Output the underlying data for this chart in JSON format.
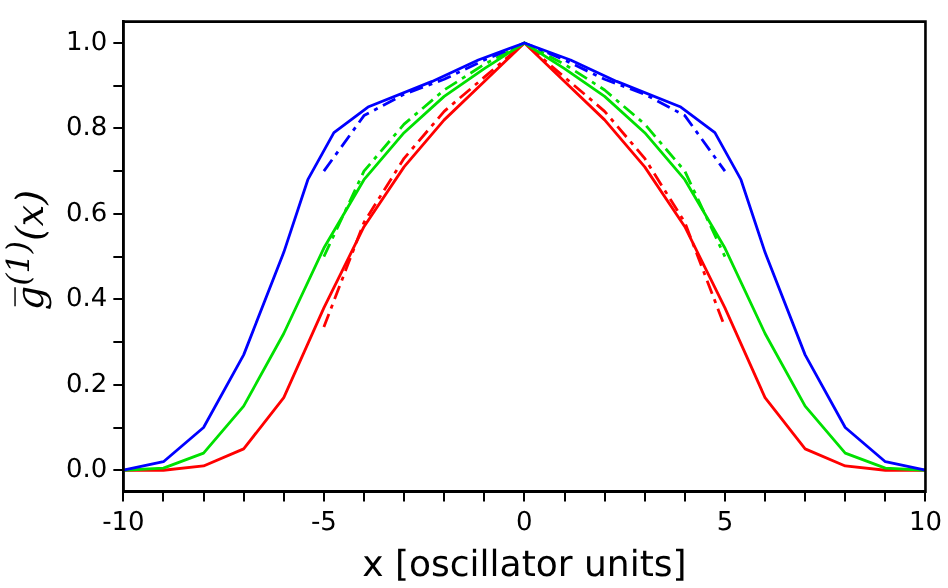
{
  "chart_data": {
    "type": "line",
    "xlabel": "x [oscillator units]",
    "ylabel": "g̅$^{(1)}$(x)",
    "grid": false,
    "legend": false,
    "marker": "none",
    "xlim": [
      -10,
      10
    ],
    "ylim": [
      -0.05,
      1.05
    ],
    "xticks": [
      -10,
      {
        "value": -9,
        "label": null
      },
      {
        "value": -8,
        "label": null
      },
      {
        "value": -7,
        "label": null
      },
      {
        "value": -6,
        "label": null
      },
      -5,
      {
        "value": -4,
        "label": null
      },
      {
        "value": -3,
        "label": null
      },
      {
        "value": -2,
        "label": null
      },
      {
        "value": -1,
        "label": null
      },
      0,
      {
        "value": 1,
        "label": null
      },
      {
        "value": 2,
        "label": null
      },
      {
        "value": 3,
        "label": null
      },
      {
        "value": 4,
        "label": null
      },
      5,
      {
        "value": 6,
        "label": null
      },
      {
        "value": 7,
        "label": null
      },
      {
        "value": 8,
        "label": null
      },
      {
        "value": 9,
        "label": null
      },
      10
    ],
    "yticks": [
      {
        "value": 0,
        "label": "0.0"
      },
      {
        "value": 0.1,
        "label": null
      },
      {
        "value": 0.2,
        "label": "0.2"
      },
      {
        "value": 0.3,
        "label": null
      },
      {
        "value": 0.4,
        "label": "0.4"
      },
      {
        "value": 0.5,
        "label": null
      },
      {
        "value": 0.6,
        "label": "0.6"
      },
      {
        "value": 0.7,
        "label": null
      },
      {
        "value": 0.8,
        "label": "0.8"
      },
      {
        "value": 0.9,
        "label": null
      },
      {
        "value": 1,
        "label": "1.0"
      }
    ],
    "series": [
      {
        "color": "#0000ff",
        "line_style": "solid",
        "x": [
          -10,
          -9,
          -8,
          -7,
          -6,
          -5.4,
          -4.75,
          -3.9,
          -2.3,
          -1.15,
          0,
          1.15,
          2.3,
          3.9,
          4.75,
          5.4,
          6,
          7,
          8,
          9,
          10
        ],
        "values": [
          0,
          0.02,
          0.1,
          0.27,
          0.51,
          0.68,
          0.79,
          0.85,
          0.91,
          0.96,
          1,
          0.96,
          0.91,
          0.85,
          0.79,
          0.68,
          0.51,
          0.27,
          0.1,
          0.02,
          0
        ]
      },
      {
        "color": "#00e000",
        "line_style": "solid",
        "x": [
          -10,
          -9,
          -8,
          -7,
          -6,
          -5,
          -4,
          -3,
          -2,
          -1,
          0,
          1,
          2,
          3,
          4,
          5,
          6,
          7,
          8,
          9,
          10
        ],
        "values": [
          0,
          0.005,
          0.04,
          0.15,
          0.32,
          0.52,
          0.68,
          0.79,
          0.875,
          0.94,
          1,
          0.94,
          0.875,
          0.79,
          0.68,
          0.52,
          0.32,
          0.15,
          0.04,
          0.005,
          0
        ]
      },
      {
        "color": "#ff0000",
        "line_style": "solid",
        "x": [
          -10,
          -9,
          -8,
          -7,
          -6,
          -5,
          -4,
          -3,
          -2,
          -1,
          0,
          1,
          2,
          3,
          4,
          5,
          6,
          7,
          8,
          9,
          10
        ],
        "values": [
          0,
          0,
          0.01,
          0.05,
          0.17,
          0.38,
          0.57,
          0.71,
          0.82,
          0.91,
          1,
          0.91,
          0.82,
          0.71,
          0.57,
          0.38,
          0.17,
          0.05,
          0.01,
          0,
          0
        ]
      },
      {
        "color": "#0000ff",
        "line_style": "dashdot",
        "x": [
          -5,
          -4,
          -3,
          -2,
          -1,
          0,
          1,
          2,
          3,
          4,
          5
        ],
        "values": [
          0.7,
          0.83,
          0.88,
          0.915,
          0.96,
          1,
          0.96,
          0.915,
          0.88,
          0.83,
          0.7
        ]
      },
      {
        "color": "#00e000",
        "line_style": "dashdot",
        "x": [
          -5,
          -4,
          -3,
          -2,
          -1,
          0,
          1,
          2,
          3,
          4,
          5
        ],
        "values": [
          0.5,
          0.7,
          0.81,
          0.89,
          0.95,
          1,
          0.95,
          0.89,
          0.81,
          0.7,
          0.5
        ]
      },
      {
        "color": "#ff0000",
        "line_style": "dashdot",
        "x": [
          -5,
          -4,
          -3,
          -2,
          -1,
          0,
          1,
          2,
          3,
          4,
          5
        ],
        "values": [
          0.335,
          0.58,
          0.73,
          0.84,
          0.92,
          1,
          0.92,
          0.84,
          0.73,
          0.58,
          0.335
        ]
      }
    ]
  }
}
